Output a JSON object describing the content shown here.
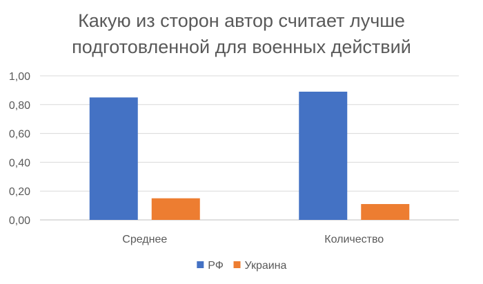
{
  "chart_data": {
    "type": "bar",
    "title_lines": [
      "Какую из сторон автор считает лучше",
      "подготовленной для военных действий"
    ],
    "categories": [
      "Среднее",
      "Количество"
    ],
    "series": [
      {
        "name": "РФ",
        "color": "#4472C4",
        "values": [
          0.85,
          0.89
        ]
      },
      {
        "name": "Украина",
        "color": "#ED7D31",
        "values": [
          0.15,
          0.11
        ]
      }
    ],
    "y_ticks": [
      "0,00",
      "0,20",
      "0,40",
      "0,60",
      "0,80",
      "1,00"
    ],
    "ylim": [
      0,
      1
    ],
    "grid": true,
    "legend_position": "bottom"
  }
}
